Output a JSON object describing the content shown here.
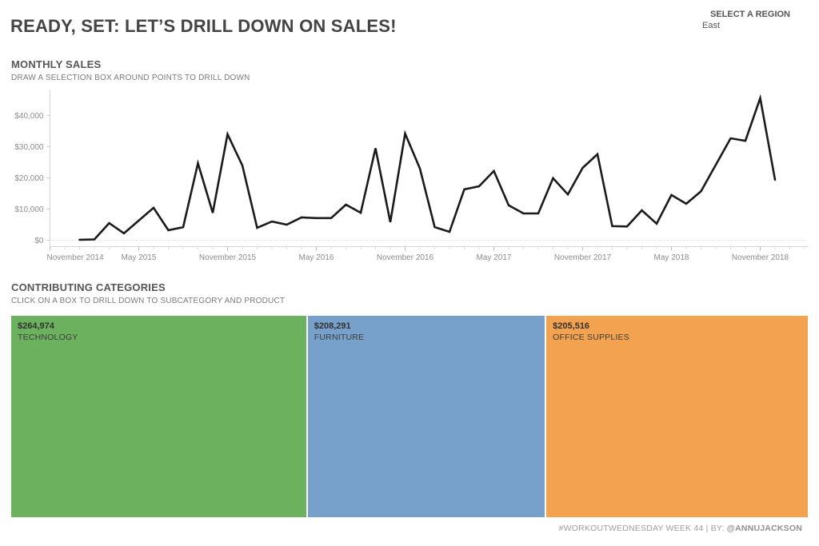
{
  "header": {
    "title": "READY, SET: LET’S DRILL DOWN ON SALES!",
    "region_label": "SELECT A REGION",
    "region_value": "East"
  },
  "monthly_sales": {
    "title": "MONTHLY SALES",
    "subtitle": "DRAW A SELECTION BOX AROUND POINTS TO DRILL DOWN"
  },
  "categories_section": {
    "title": "CONTRIBUTING CATEGORIES",
    "subtitle": "CLICK ON A BOX TO DRILL DOWN TO SUBCATEGORY AND PRODUCT",
    "boxes": [
      {
        "value": "$264,974",
        "label": "TECHNOLOGY",
        "color": "#6CB15E",
        "sales": 264974
      },
      {
        "value": "$208,291",
        "label": "FURNITURE",
        "color": "#77A0CA",
        "sales": 208291
      },
      {
        "value": "$205,516",
        "label": "OFFICE SUPPLIES",
        "color": "#F3A34F",
        "sales": 205516
      }
    ]
  },
  "footer": {
    "text": "#WORKOUTWEDNESDAY WEEK 44 | BY: ",
    "handle": "@ANNUJACKSON"
  },
  "chart_data": {
    "type": "line",
    "title": "MONTHLY SALES",
    "xlabel": "",
    "ylabel": "",
    "line_color": "#1b1b1b",
    "grid": "dotted zero line only",
    "ylim": [
      0,
      47000
    ],
    "y_ticks": [
      "$0",
      "$10,000",
      "$20,000",
      "$30,000",
      "$40,000"
    ],
    "y_tick_values": [
      0,
      10000,
      20000,
      30000,
      40000
    ],
    "x_tick_labels": [
      "November 2014",
      "May 2015",
      "November 2015",
      "May 2016",
      "November 2016",
      "May 2017",
      "November 2017",
      "May 2018",
      "November 2018"
    ],
    "x_tick_month_index": [
      0,
      6,
      12,
      18,
      24,
      30,
      36,
      42,
      48
    ],
    "axis_start_label": "November 2014",
    "start_month_index": 2,
    "months": [
      "Jan 2015",
      "Feb 2015",
      "Mar 2015",
      "Apr 2015",
      "May 2015",
      "Jun 2015",
      "Jul 2015",
      "Aug 2015",
      "Sep 2015",
      "Oct 2015",
      "Nov 2015",
      "Dec 2015",
      "Jan 2016",
      "Feb 2016",
      "Mar 2016",
      "Apr 2016",
      "May 2016",
      "Jun 2016",
      "Jul 2016",
      "Aug 2016",
      "Sep 2016",
      "Oct 2016",
      "Nov 2016",
      "Dec 2016",
      "Jan 2017",
      "Feb 2017",
      "Mar 2017",
      "Apr 2017",
      "May 2017",
      "Jun 2017",
      "Jul 2017",
      "Aug 2017",
      "Sep 2017",
      "Oct 2017",
      "Nov 2017",
      "Dec 2017",
      "Jan 2018",
      "Feb 2018",
      "Mar 2018",
      "Apr 2018",
      "May 2018",
      "Jun 2018",
      "Jul 2018",
      "Aug 2018",
      "Sep 2018",
      "Oct 2018",
      "Nov 2018",
      "Dec 2018"
    ],
    "values": [
      150,
      250,
      5500,
      2200,
      6300,
      10400,
      3200,
      4200,
      24700,
      8800,
      34000,
      24000,
      4000,
      6000,
      5000,
      7300,
      7100,
      7100,
      11400,
      8800,
      29500,
      5800,
      34200,
      23000,
      4200,
      2700,
      16300,
      17300,
      22200,
      11200,
      8600,
      8600,
      19900,
      14700,
      23200,
      27600,
      4500,
      4400,
      9600,
      5300,
      14500,
      11700,
      15700,
      24200,
      32700,
      31900,
      45600,
      19400
    ]
  }
}
